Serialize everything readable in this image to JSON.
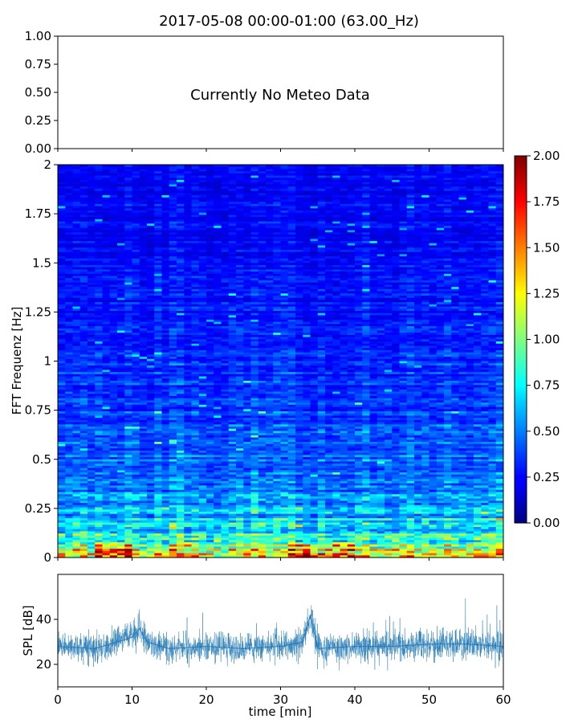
{
  "figure": {
    "title": "2017-05-08 00:00-01:00 (63.00_Hz)"
  },
  "chart_data": [
    {
      "id": "meteo",
      "type": "line",
      "annotation": "Currently No Meteo Data",
      "ylim": [
        0,
        1
      ],
      "yticks": [
        "0.00",
        "0.25",
        "0.50",
        "0.75",
        "1.00"
      ],
      "xlim": [
        0,
        60
      ],
      "xticks_labeled": false,
      "series": []
    },
    {
      "id": "spectrogram",
      "type": "heatmap",
      "ylabel": "FFT Frequenz [Hz]",
      "ylim": [
        0,
        2
      ],
      "yticks": [
        "0",
        "0.25",
        "0.5",
        "0.75",
        "1",
        "1.25",
        "1.5",
        "1.75",
        "2"
      ],
      "xlim": [
        0,
        60
      ],
      "colormap": "jet",
      "colorbar": {
        "range": [
          0,
          2
        ],
        "ticks": [
          "0.00",
          "0.25",
          "0.50",
          "0.75",
          "1.00",
          "1.25",
          "1.50",
          "1.75",
          "2.00"
        ]
      },
      "intensity_profile": {
        "frequency": [
          0,
          0.05,
          0.1,
          0.2,
          0.3,
          0.5,
          0.75,
          1.0,
          1.5,
          2.0
        ],
        "typical_value": [
          1.5,
          1.05,
          0.8,
          0.62,
          0.52,
          0.45,
          0.37,
          0.32,
          0.25,
          0.24
        ]
      },
      "hotspot_windows_min": [
        [
          5,
          10
        ],
        [
          31,
          35
        ],
        [
          36,
          40
        ]
      ]
    },
    {
      "id": "spl",
      "type": "line",
      "ylabel": "SPL [dB]",
      "xlabel": "time [min]",
      "xlim": [
        0,
        60
      ],
      "ylim": [
        10,
        60
      ],
      "xticks": [
        "0",
        "10",
        "20",
        "30",
        "40",
        "50",
        "60"
      ],
      "yticks": [
        "20",
        "40"
      ],
      "color": "#1f77b4",
      "series": [
        {
          "x": [
            0,
            5,
            10,
            11,
            12,
            15,
            20,
            25,
            30,
            33,
            34,
            35,
            40,
            45,
            50,
            55,
            60
          ],
          "y": [
            28,
            27,
            32,
            36,
            30,
            27,
            28,
            27,
            28,
            30,
            42,
            27,
            28,
            28,
            29,
            29,
            28
          ]
        }
      ]
    }
  ]
}
